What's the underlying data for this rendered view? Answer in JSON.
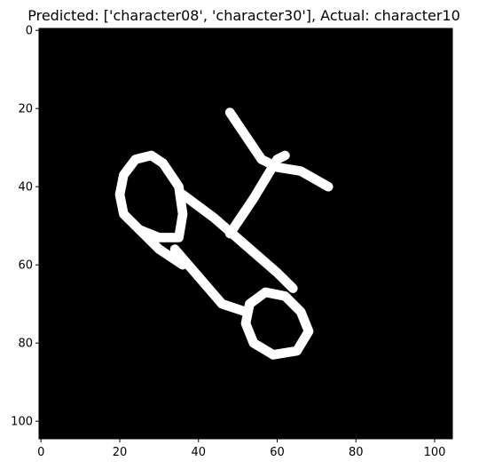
{
  "chart_data": {
    "type": "heatmap",
    "title": "Predicted: ['character08', 'character30'], Actual: character10",
    "xlabel": "",
    "ylabel": "",
    "colormap": "gray",
    "background_color": "#000000",
    "foreground_color": "#ffffff",
    "image_size": [
      105,
      105
    ],
    "xlim": [
      -0.5,
      104.5
    ],
    "ylim": [
      104.5,
      -0.5
    ],
    "xticks": [
      0,
      20,
      40,
      60,
      80,
      100
    ],
    "yticks": [
      0,
      20,
      40,
      60,
      80,
      100
    ],
    "xtick_labels": [
      "0",
      "20",
      "40",
      "60",
      "80",
      "100"
    ],
    "ytick_labels": [
      "0",
      "20",
      "40",
      "60",
      "80",
      "100"
    ],
    "strokes": [
      {
        "kind": "line",
        "points": [
          [
            48,
            21
          ],
          [
            56,
            33
          ],
          [
            60,
            35
          ],
          [
            66,
            36
          ],
          [
            73,
            40
          ]
        ]
      },
      {
        "kind": "line",
        "points": [
          [
            48,
            52
          ],
          [
            54,
            43
          ],
          [
            60,
            33
          ],
          [
            62,
            32
          ]
        ]
      },
      {
        "kind": "loop",
        "points": [
          [
            21,
            37
          ],
          [
            24,
            33
          ],
          [
            28,
            32
          ],
          [
            31,
            34
          ],
          [
            35,
            40
          ],
          [
            36,
            47
          ],
          [
            35,
            53
          ],
          [
            30,
            53
          ],
          [
            25,
            51
          ],
          [
            21,
            47
          ],
          [
            20,
            42
          ],
          [
            21,
            37
          ]
        ]
      },
      {
        "kind": "loop",
        "points": [
          [
            53,
            70
          ],
          [
            57,
            67
          ],
          [
            62,
            68
          ],
          [
            66,
            72
          ],
          [
            68,
            77
          ],
          [
            65,
            82
          ],
          [
            59,
            83
          ],
          [
            54,
            80
          ],
          [
            52,
            75
          ],
          [
            53,
            70
          ]
        ]
      },
      {
        "kind": "line",
        "points": [
          [
            34,
            56
          ],
          [
            40,
            63
          ],
          [
            46,
            70
          ],
          [
            52,
            72
          ]
        ]
      },
      {
        "kind": "line",
        "points": [
          [
            36,
            42
          ],
          [
            44,
            48
          ],
          [
            52,
            55
          ],
          [
            60,
            62
          ],
          [
            64,
            66
          ]
        ]
      },
      {
        "kind": "line",
        "points": [
          [
            25,
            51
          ],
          [
            30,
            56
          ],
          [
            36,
            60
          ]
        ]
      }
    ]
  }
}
